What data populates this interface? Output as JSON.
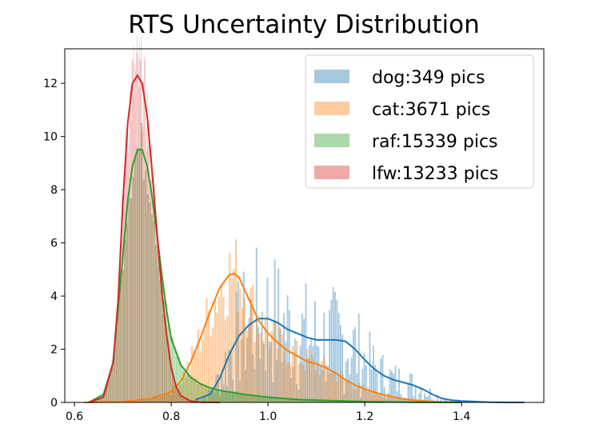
{
  "chart_data": {
    "type": "area",
    "title": "RTS Uncertainty Distribution",
    "xlabel": "",
    "ylabel": "",
    "xlim": [
      0.58,
      1.57
    ],
    "ylim": [
      0,
      13.3
    ],
    "xticks": [
      0.6,
      0.8,
      1.0,
      1.2,
      1.4
    ],
    "yticks": [
      0,
      2,
      4,
      6,
      8,
      10,
      12
    ],
    "legend_position": "upper right",
    "series": [
      {
        "name": "dog:349 pics",
        "color": "#1f77b4",
        "x": [
          0.85,
          0.88,
          0.9,
          0.92,
          0.94,
          0.96,
          0.98,
          1.0,
          1.02,
          1.04,
          1.06,
          1.08,
          1.1,
          1.12,
          1.14,
          1.16,
          1.18,
          1.2,
          1.22,
          1.24,
          1.26,
          1.28,
          1.3,
          1.32,
          1.34,
          1.36,
          1.38,
          1.4,
          1.43,
          1.46,
          1.5,
          1.53
        ],
        "y": [
          0.1,
          0.3,
          0.9,
          1.8,
          2.5,
          2.9,
          3.15,
          3.15,
          3.0,
          2.75,
          2.6,
          2.45,
          2.35,
          2.35,
          2.35,
          2.3,
          2.0,
          1.6,
          1.25,
          1.0,
          0.85,
          0.75,
          0.65,
          0.5,
          0.3,
          0.15,
          0.08,
          0.05,
          0.03,
          0.01,
          0.0,
          0.0
        ]
      },
      {
        "name": "cat:3671 pics",
        "color": "#ff7f0e",
        "x": [
          0.62,
          0.7,
          0.76,
          0.8,
          0.82,
          0.84,
          0.86,
          0.88,
          0.9,
          0.92,
          0.93,
          0.94,
          0.96,
          0.98,
          1.0,
          1.02,
          1.04,
          1.06,
          1.08,
          1.1,
          1.12,
          1.14,
          1.16,
          1.18,
          1.2,
          1.22,
          1.24,
          1.26,
          1.28,
          1.3,
          1.32,
          1.34,
          1.36,
          1.38,
          1.4
        ],
        "y": [
          0.0,
          0.02,
          0.15,
          0.4,
          0.8,
          1.5,
          2.4,
          3.4,
          4.3,
          4.8,
          4.85,
          4.7,
          3.9,
          3.1,
          2.6,
          2.25,
          1.95,
          1.75,
          1.55,
          1.45,
          1.3,
          1.1,
          0.85,
          0.65,
          0.5,
          0.38,
          0.28,
          0.2,
          0.13,
          0.08,
          0.05,
          0.03,
          0.02,
          0.01,
          0.0
        ]
      },
      {
        "name": "raf:15339 pics",
        "color": "#2ca02c",
        "x": [
          0.63,
          0.66,
          0.68,
          0.7,
          0.71,
          0.72,
          0.73,
          0.74,
          0.75,
          0.76,
          0.77,
          0.78,
          0.79,
          0.8,
          0.82,
          0.84,
          0.86,
          0.88,
          0.9,
          0.95,
          1.0,
          1.05,
          1.1,
          1.2,
          1.3,
          1.4
        ],
        "y": [
          0.0,
          0.3,
          1.5,
          5.5,
          7.6,
          8.9,
          9.5,
          9.5,
          8.9,
          7.8,
          6.4,
          4.9,
          3.5,
          2.4,
          1.4,
          0.95,
          0.7,
          0.55,
          0.45,
          0.3,
          0.2,
          0.12,
          0.08,
          0.03,
          0.01,
          0.0
        ]
      },
      {
        "name": "lfw:13233 pics",
        "color": "#d62728",
        "x": [
          0.63,
          0.66,
          0.68,
          0.69,
          0.7,
          0.71,
          0.72,
          0.73,
          0.74,
          0.75,
          0.76,
          0.77,
          0.78,
          0.79,
          0.8,
          0.81,
          0.82,
          0.84,
          0.86,
          0.9
        ],
        "y": [
          0.0,
          0.2,
          1.5,
          3.8,
          7.5,
          10.5,
          12.0,
          12.3,
          12.0,
          10.8,
          8.8,
          6.5,
          4.3,
          2.6,
          1.3,
          0.6,
          0.25,
          0.05,
          0.01,
          0.0
        ]
      }
    ]
  }
}
